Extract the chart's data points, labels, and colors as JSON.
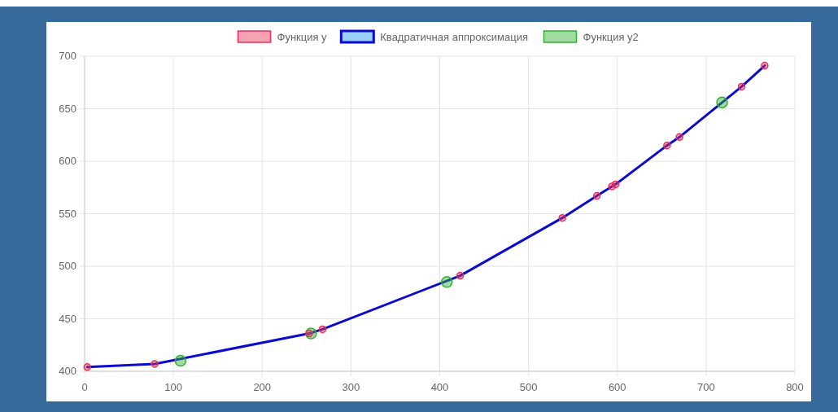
{
  "chart_data": {
    "type": "scatter",
    "xlim": [
      0,
      800
    ],
    "xticks": [
      0,
      100,
      200,
      300,
      400,
      500,
      600,
      700,
      800
    ],
    "ylim": [
      400,
      700
    ],
    "yticks": [
      400,
      450,
      500,
      550,
      600,
      650,
      700
    ],
    "grid": true,
    "legend": "top",
    "marker": "circle",
    "series": [
      {
        "name": "Функция y",
        "color": "#e8305a",
        "x": [
          3,
          79,
          253,
          268,
          423,
          538,
          577,
          594,
          598,
          656,
          670,
          740,
          766
        ],
        "values": [
          404,
          407,
          436,
          440,
          491,
          546,
          567,
          576,
          578,
          615,
          623,
          671,
          691
        ]
      },
      {
        "name": "Квадратичная аппроксимация",
        "type": "line",
        "marker": "none",
        "color": "#0a0ad0",
        "x": [
          3,
          79,
          253,
          268,
          423,
          538,
          577,
          594,
          598,
          656,
          670,
          740,
          766
        ],
        "values": [
          404,
          407,
          436,
          440,
          491,
          546,
          567,
          576,
          578,
          615,
          623,
          671,
          691
        ]
      },
      {
        "name": "Функция y2",
        "color": "#30b030",
        "x": [
          108,
          255,
          408,
          718
        ],
        "values": [
          410,
          436,
          485,
          656
        ]
      }
    ]
  }
}
